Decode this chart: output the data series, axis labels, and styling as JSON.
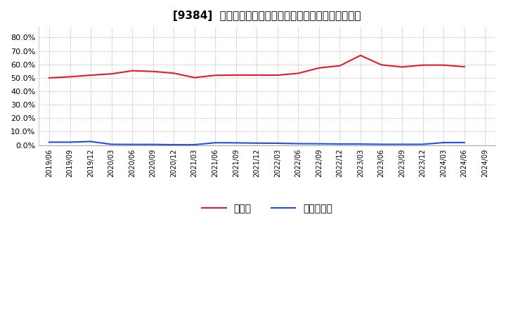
{
  "title": "[9384]  現預金、有利子負債の総資産に対する比率の推移",
  "x_labels": [
    "2019/06",
    "2019/09",
    "2019/12",
    "2020/03",
    "2020/06",
    "2020/09",
    "2020/12",
    "2021/03",
    "2021/06",
    "2021/09",
    "2021/12",
    "2022/03",
    "2022/06",
    "2022/09",
    "2022/12",
    "2023/03",
    "2023/06",
    "2023/09",
    "2023/12",
    "2024/03",
    "2024/06",
    "2024/09"
  ],
  "cash_ratio": [
    0.5,
    0.508,
    0.52,
    0.53,
    0.553,
    0.548,
    0.535,
    0.502,
    0.519,
    0.521,
    0.521,
    0.52,
    0.534,
    0.574,
    0.59,
    0.667,
    0.597,
    0.581,
    0.595,
    0.595,
    0.583,
    null
  ],
  "debt_ratio": [
    0.022,
    0.022,
    0.027,
    0.006,
    0.005,
    0.005,
    0.003,
    0.003,
    0.018,
    0.017,
    0.015,
    0.014,
    0.011,
    0.01,
    0.008,
    0.008,
    0.006,
    0.006,
    0.006,
    0.019,
    0.019,
    null
  ],
  "cash_color": "#e8192c",
  "debt_color": "#1f4ee8",
  "background_color": "#ffffff",
  "grid_color": "#aaaaaa",
  "ylim": [
    0.0,
    0.88
  ],
  "yticks": [
    0.0,
    0.1,
    0.2,
    0.3,
    0.4,
    0.5,
    0.6,
    0.7,
    0.8
  ],
  "legend_cash": "現預金",
  "legend_debt": "有利子負債"
}
